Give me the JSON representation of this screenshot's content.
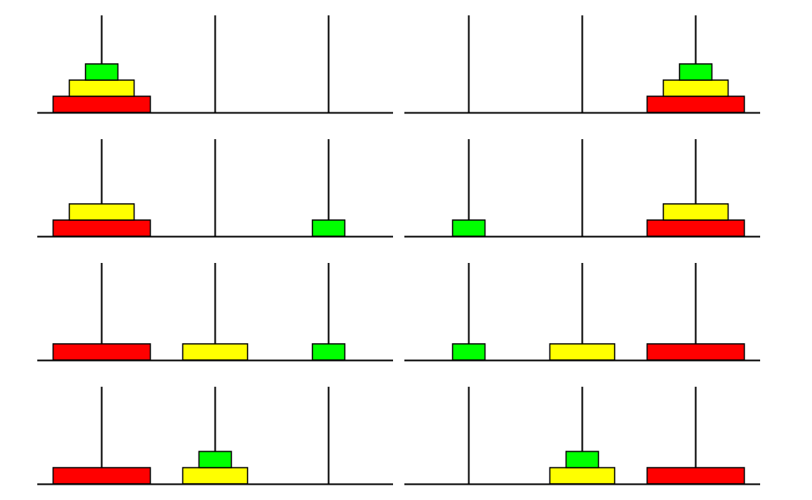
{
  "colors": {
    "background": "#ffffff",
    "line": "#000000",
    "disk_large": "#ff0000",
    "disk_medium": "#ffff00",
    "disk_small": "#00ff00"
  },
  "pegs_per_panel": 3,
  "disks": [
    {
      "id": "small",
      "color_key": "disk_small"
    },
    {
      "id": "medium",
      "color_key": "disk_medium"
    },
    {
      "id": "large",
      "color_key": "disk_large"
    }
  ],
  "panels": [
    {
      "id": "step-1",
      "pegs": [
        [
          "large",
          "medium",
          "small"
        ],
        [],
        []
      ]
    },
    {
      "id": "step-2",
      "pegs": [
        [
          "large",
          "medium"
        ],
        [],
        [
          "small"
        ]
      ]
    },
    {
      "id": "step-3",
      "pegs": [
        [
          "large"
        ],
        [
          "medium"
        ],
        [
          "small"
        ]
      ]
    },
    {
      "id": "step-4",
      "pegs": [
        [
          "large"
        ],
        [
          "medium",
          "small"
        ],
        []
      ]
    },
    {
      "id": "step-5",
      "pegs": [
        [],
        [
          "medium",
          "small"
        ],
        [
          "large"
        ]
      ]
    },
    {
      "id": "step-6",
      "pegs": [
        [
          "small"
        ],
        [
          "medium"
        ],
        [
          "large"
        ]
      ]
    },
    {
      "id": "step-7",
      "pegs": [
        [
          "small"
        ],
        [],
        [
          "large",
          "medium"
        ]
      ]
    },
    {
      "id": "step-8",
      "pegs": [
        [],
        [],
        [
          "large",
          "medium",
          "small"
        ]
      ]
    }
  ]
}
